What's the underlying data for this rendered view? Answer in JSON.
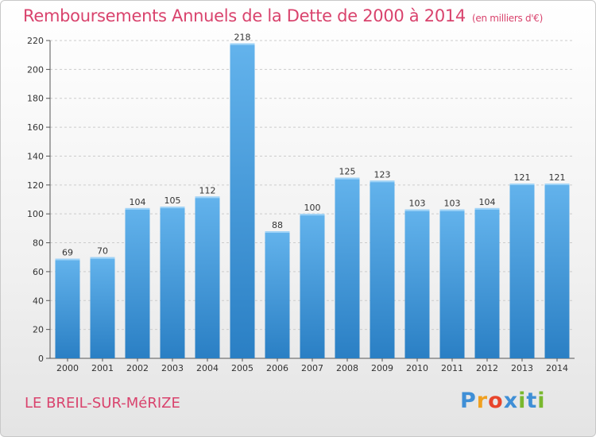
{
  "header": {
    "title": "Remboursements Annuels de la Dette de 2000 à 2014",
    "unit": "(en milliers d'€)"
  },
  "footer": {
    "commune": "LE BREIL-SUR-MéRIZE",
    "logo_text": "Proxiti"
  },
  "colors": {
    "title": "#d9436d",
    "bar_light": "#63b3ec",
    "bar_dark": "#2a7fc4",
    "grid": "#cccccc"
  },
  "chart_data": {
    "type": "bar",
    "title": "Remboursements Annuels de la Dette de 2000 à 2014",
    "xlabel": "",
    "ylabel": "",
    "categories": [
      "2000",
      "2001",
      "2002",
      "2003",
      "2004",
      "2005",
      "2006",
      "2007",
      "2008",
      "2009",
      "2010",
      "2011",
      "2012",
      "2013",
      "2014"
    ],
    "values": [
      69,
      70,
      104,
      105,
      112,
      218,
      88,
      100,
      125,
      123,
      103,
      103,
      104,
      121,
      121
    ],
    "ylim": [
      0,
      220
    ],
    "yticks": [
      0,
      20,
      40,
      60,
      80,
      100,
      120,
      140,
      160,
      180,
      200,
      220
    ],
    "grid": true,
    "legend": "none"
  }
}
